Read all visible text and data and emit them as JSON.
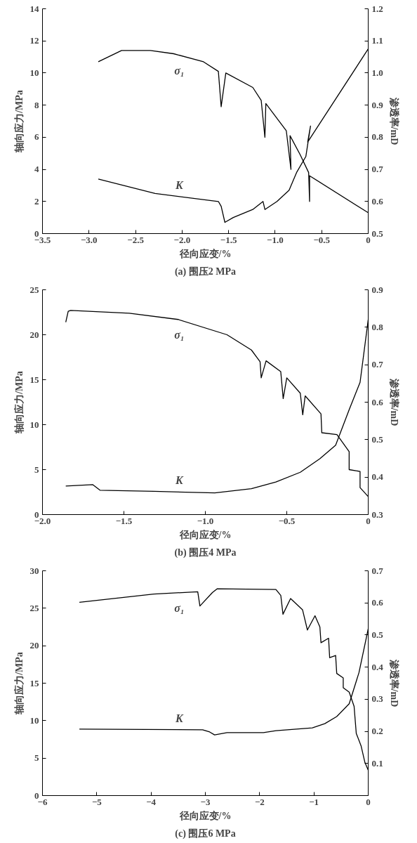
{
  "chart_data": [
    {
      "type": "line",
      "title": "(a) 围压2 MPa",
      "xlabel": "径向应变/%",
      "ylabel": "轴向应力/MPa",
      "y2label": "渗透率/mD",
      "xlim": [
        -3.5,
        0
      ],
      "xticks": [
        {
          "value": -3.5,
          "label": "−3.5"
        },
        {
          "value": -3,
          "label": "−3.0"
        },
        {
          "value": -2.5,
          "label": "−2.5"
        },
        {
          "value": -2,
          "label": "−2.0"
        },
        {
          "value": -1.5,
          "label": "−1.5"
        },
        {
          "value": -1,
          "label": "−1.0"
        },
        {
          "value": -0.5,
          "label": "−0.5"
        },
        {
          "value": 0,
          "label": "0"
        }
      ],
      "ylim": [
        0,
        14
      ],
      "yticks": [
        0,
        2,
        4,
        6,
        8,
        10,
        12,
        14
      ],
      "y2lim": [
        0.5,
        1.2
      ],
      "y2ticks": [
        0.5,
        0.6,
        0.7,
        0.8,
        0.9,
        {
          "value": 1,
          "label": "1.0"
        },
        1.1,
        1.2
      ],
      "grid": false,
      "marker": "none",
      "line_style": "solid",
      "series": [
        {
          "name": "σ₁",
          "color": "#000000",
          "x": [
            -2.9,
            -2.65,
            -2.34,
            -2.09,
            -1.77,
            -1.61,
            -1.58,
            -1.53,
            -1.24,
            -1.15,
            -1.11,
            -1.1,
            -0.88,
            -0.83,
            -0.84,
            -0.73,
            -0.64,
            -0.63,
            -0.63,
            0
          ],
          "values": [
            10.7,
            11.4,
            11.4,
            11.2,
            10.7,
            10.1,
            7.9,
            10.0,
            9.1,
            8.3,
            6.0,
            8.1,
            6.4,
            4.0,
            6.1,
            4.9,
            3.8,
            2.0,
            3.6,
            1.3
          ]
        },
        {
          "name": "K",
          "color": "#000000",
          "axis": "y2",
          "x": [
            -2.9,
            -2.29,
            -1.61,
            -1.58,
            -1.54,
            -1.45,
            -1.24,
            -1.13,
            -1.11,
            -0.98,
            -0.85,
            -0.77,
            -0.67,
            -0.62,
            -0.65,
            0
          ],
          "values": [
            0.67,
            0.625,
            0.6,
            0.585,
            0.535,
            0.55,
            0.575,
            0.6,
            0.575,
            0.6,
            0.635,
            0.69,
            0.74,
            0.835,
            0.785,
            1.075
          ]
        }
      ]
    },
    {
      "type": "line",
      "title": "(b) 围压4 MPa",
      "xlabel": "径向应变/%",
      "ylabel": "轴向应力/MPa",
      "y2label": "渗透率/mD",
      "xlim": [
        -2,
        0
      ],
      "xticks": [
        {
          "value": -2,
          "label": "−2.0"
        },
        {
          "value": -1.5,
          "label": "−1.5"
        },
        {
          "value": -1,
          "label": "−1.0"
        },
        {
          "value": -0.5,
          "label": "−0.5"
        },
        {
          "value": 0,
          "label": "0"
        }
      ],
      "ylim": [
        0,
        25
      ],
      "yticks": [
        0,
        5,
        10,
        15,
        20,
        25
      ],
      "y2lim": [
        0.3,
        0.9
      ],
      "y2ticks": [
        0.3,
        0.4,
        0.5,
        0.6,
        0.7,
        0.8,
        0.9
      ],
      "grid": false,
      "marker": "none",
      "line_style": "solid",
      "series": [
        {
          "name": "σ₁",
          "color": "#000000",
          "x": [
            -1.857,
            -1.842,
            -1.827,
            -1.467,
            -1.167,
            -0.867,
            -0.717,
            -0.664,
            -0.657,
            -0.627,
            -0.537,
            -0.522,
            -0.5,
            -0.417,
            -0.402,
            -0.387,
            -0.29,
            -0.285,
            -0.192,
            -0.117,
            -0.117,
            -0.05,
            -0.05,
            0
          ],
          "values": [
            21.4,
            22.6,
            22.7,
            22.4,
            21.7,
            20.0,
            18.3,
            17.0,
            15.2,
            17.1,
            15.9,
            12.9,
            15.2,
            13.5,
            11.1,
            13.2,
            11.2,
            9.1,
            8.9,
            7.0,
            5.0,
            4.8,
            3.0,
            2.0
          ]
        },
        {
          "name": "K",
          "color": "#000000",
          "axis": "y2",
          "x": [
            -1.857,
            -1.692,
            -1.647,
            -1.317,
            -0.942,
            -0.717,
            -0.567,
            -0.417,
            -0.297,
            -0.2,
            -0.117,
            -0.05,
            0
          ],
          "values": [
            0.376,
            0.38,
            0.365,
            0.362,
            0.358,
            0.369,
            0.387,
            0.413,
            0.449,
            0.485,
            0.58,
            0.653,
            0.82
          ]
        }
      ]
    },
    {
      "type": "line",
      "title": "(c) 围压6 MPa",
      "xlabel": "径向应变/%",
      "ylabel": "轴向应力/MPa",
      "y2label": "渗透率/mD",
      "xlim": [
        -6,
        0
      ],
      "xticks": [
        {
          "value": -6,
          "label": "−6"
        },
        {
          "value": -5,
          "label": "−5"
        },
        {
          "value": -4,
          "label": "−4"
        },
        {
          "value": -3,
          "label": "−3"
        },
        {
          "value": -2,
          "label": "−2"
        },
        {
          "value": -1,
          "label": "−1"
        },
        {
          "value": 0,
          "label": "0"
        }
      ],
      "ylim": [
        0,
        30
      ],
      "yticks": [
        0,
        5,
        10,
        15,
        20,
        25,
        30
      ],
      "y2lim": [
        0,
        0.7
      ],
      "y2ticks": [
        {
          "value": 0,
          "label": null
        },
        0.1,
        0.2,
        0.3,
        0.4,
        0.5,
        0.6,
        0.7
      ],
      "grid": false,
      "marker": "none",
      "line_style": "solid",
      "series": [
        {
          "name": "σ₁",
          "color": "#000000",
          "x": [
            -5.32,
            -3.95,
            -3.14,
            -3.1,
            -2.87,
            -2.78,
            -1.7,
            -1.61,
            -1.57,
            -1.43,
            -1.21,
            -1.12,
            -0.98,
            -0.89,
            -0.87,
            -0.73,
            -0.71,
            -0.6,
            -0.58,
            -0.46,
            -0.46,
            -0.35,
            -0.26,
            -0.22,
            -0.13,
            -0.06,
            0
          ],
          "values": [
            25.8,
            26.9,
            27.2,
            25.3,
            27.1,
            27.6,
            27.5,
            26.7,
            24.2,
            26.3,
            24.8,
            22.1,
            24.0,
            22.5,
            20.4,
            21.0,
            18.4,
            18.7,
            16.3,
            15.7,
            14.4,
            13.8,
            11.9,
            8.3,
            6.6,
            4.4,
            3.4
          ]
        },
        {
          "name": "K",
          "color": "#000000",
          "axis": "y2",
          "x": [
            -5.32,
            -3.05,
            -2.92,
            -2.83,
            -2.6,
            -1.93,
            -1.7,
            -1.03,
            -0.8,
            -0.58,
            -0.35,
            -0.17,
            0
          ],
          "values": [
            0.207,
            0.205,
            0.198,
            0.189,
            0.196,
            0.196,
            0.202,
            0.211,
            0.224,
            0.246,
            0.286,
            0.383,
            0.519
          ]
        }
      ]
    }
  ]
}
